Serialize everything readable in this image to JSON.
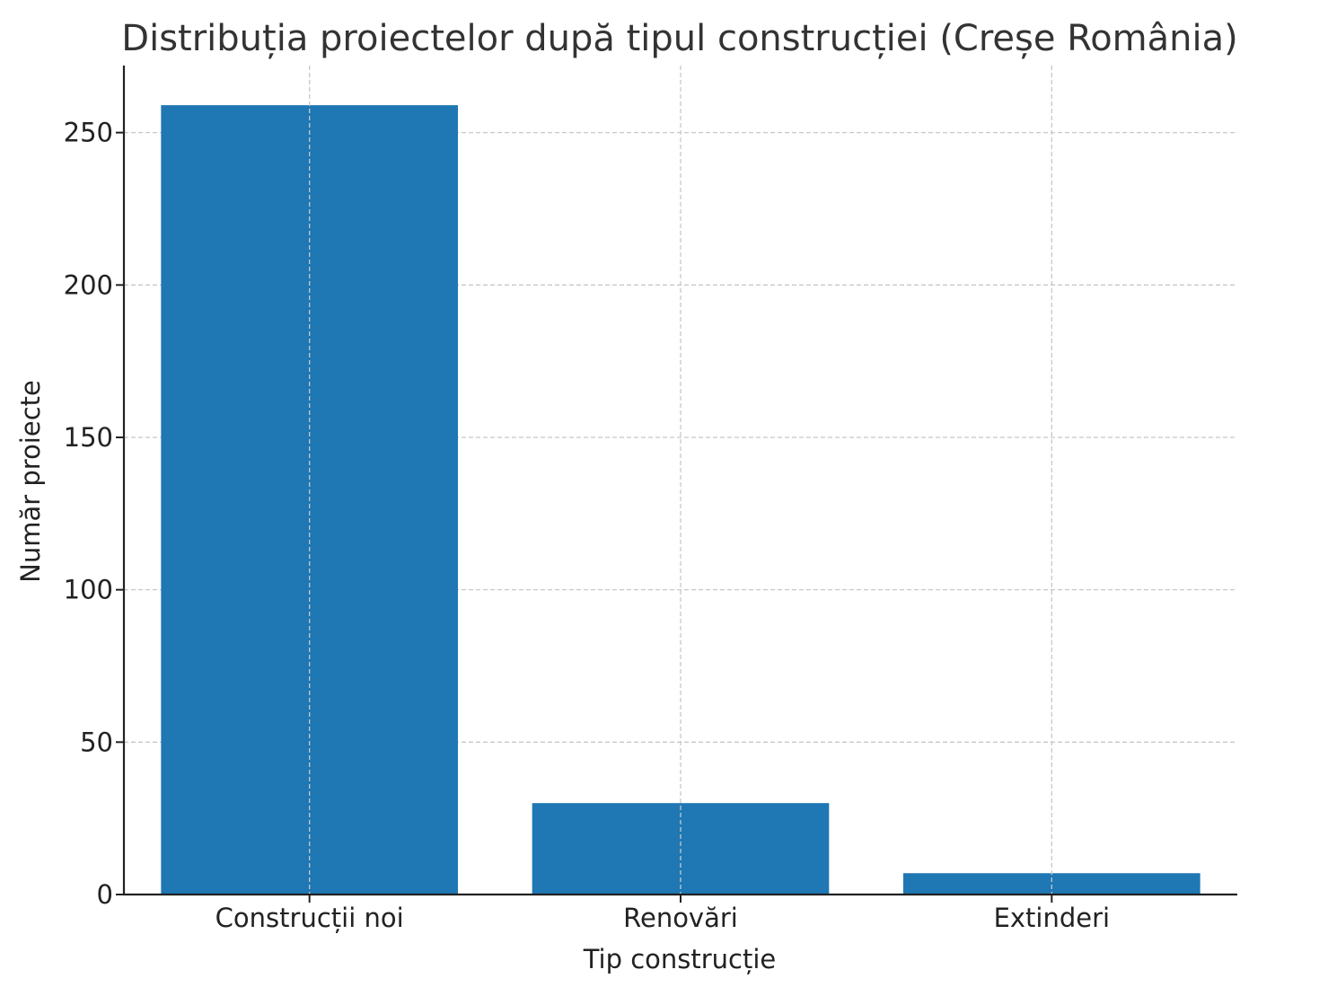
{
  "chart_data": {
    "type": "bar",
    "title": "Distribuția proiectelor după tipul construcției (Creșe România)",
    "xlabel": "Tip construcție",
    "ylabel": "Număr proiecte",
    "categories": [
      "Construcții noi",
      "Renovări",
      "Extinderi"
    ],
    "values": [
      259,
      30,
      7
    ],
    "ylim": [
      0,
      272
    ],
    "yticks": [
      0,
      50,
      100,
      150,
      200,
      250
    ],
    "grid": true,
    "bar_color": "#1f77b4",
    "grid_color": "#c8c8c8",
    "axis_color": "#222222"
  }
}
